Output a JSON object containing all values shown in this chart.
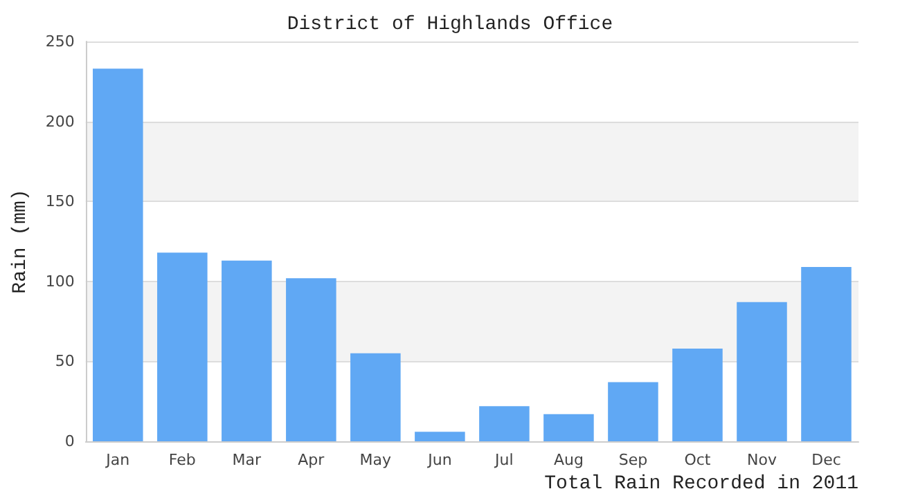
{
  "chart_data": {
    "type": "bar",
    "title": "District of Highlands Office",
    "xlabel": "Total Rain Recorded in 2011",
    "ylabel": "Rain (mm)",
    "categories": [
      "Jan",
      "Feb",
      "Mar",
      "Apr",
      "May",
      "Jun",
      "Jul",
      "Aug",
      "Sep",
      "Oct",
      "Nov",
      "Dec"
    ],
    "values": [
      233,
      118,
      113,
      102,
      55,
      6,
      22,
      17,
      37,
      58,
      87,
      109
    ],
    "color": "#60a8f4",
    "ylim": [
      0,
      250
    ],
    "yticks": [
      0,
      50,
      100,
      150,
      200,
      250
    ],
    "grid": "y"
  }
}
